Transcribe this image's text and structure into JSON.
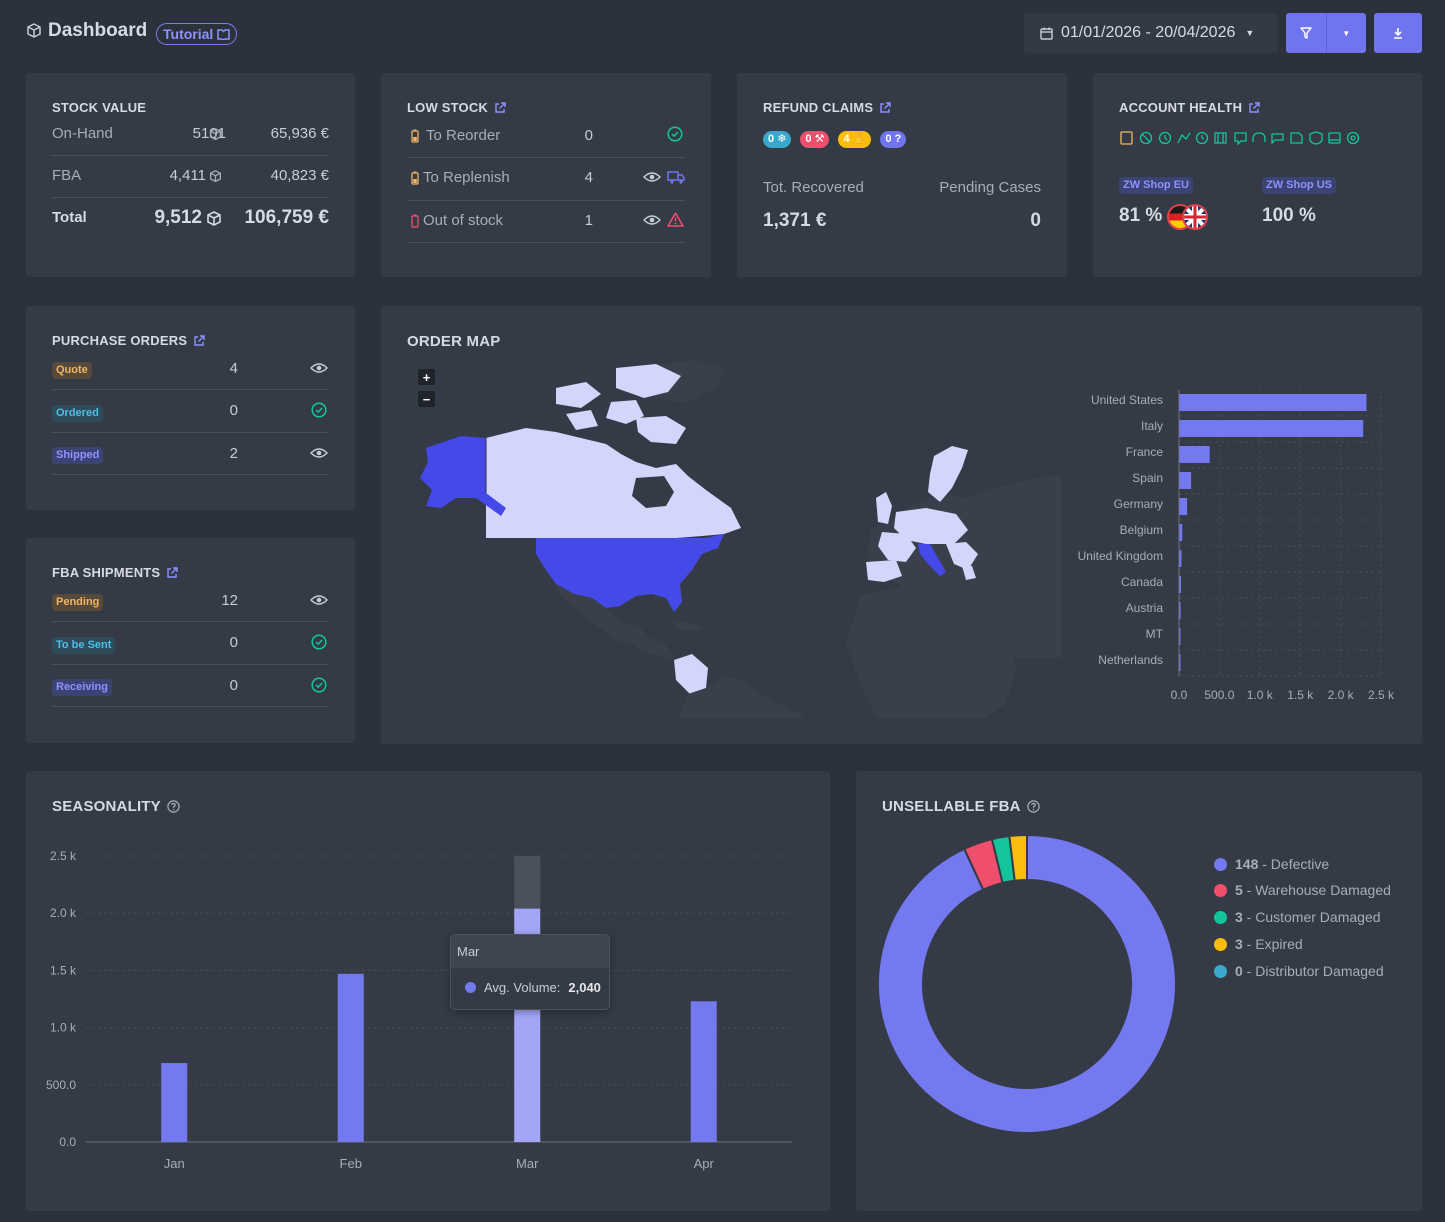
{
  "header": {
    "title": "Dashboard",
    "tutorial_label": "Tutorial",
    "date_range": "01/01/2026 - 20/04/2026"
  },
  "stock_value": {
    "title": "STOCK VALUE",
    "rows": [
      {
        "label": "On-Hand",
        "units": "5101",
        "value": "65,936 €"
      },
      {
        "label": "FBA",
        "units": "4,411",
        "value": "40,823 €"
      },
      {
        "label": "Total",
        "units": "9,512",
        "value": "106,759 €"
      }
    ]
  },
  "low_stock": {
    "title": "LOW STOCK",
    "rows": [
      {
        "label": "To Reorder",
        "count": "0"
      },
      {
        "label": "To Replenish",
        "count": "4"
      },
      {
        "label": "Out of stock",
        "count": "1"
      }
    ]
  },
  "refund_claims": {
    "title": "REFUND CLAIMS",
    "badges": [
      "0",
      "0",
      "4",
      "0"
    ],
    "recovered_label": "Tot. Recovered",
    "recovered_value": "1,371 €",
    "pending_label": "Pending Cases",
    "pending_value": "0"
  },
  "account_health": {
    "title": "ACCOUNT HEALTH",
    "shops": [
      {
        "name": "ZW Shop EU",
        "value": "81 %"
      },
      {
        "name": "ZW Shop US",
        "value": "100 %"
      }
    ]
  },
  "purchase_orders": {
    "title": "PURCHASE ORDERS",
    "rows": [
      {
        "label": "Quote",
        "count": "4"
      },
      {
        "label": "Ordered",
        "count": "0"
      },
      {
        "label": "Shipped",
        "count": "2"
      }
    ]
  },
  "fba_shipments": {
    "title": "FBA SHIPMENTS",
    "rows": [
      {
        "label": "Pending",
        "count": "12"
      },
      {
        "label": "To be Sent",
        "count": "0"
      },
      {
        "label": "Receiving",
        "count": "0"
      }
    ]
  },
  "order_map": {
    "title": "ORDER MAP",
    "zoom_in": "+",
    "zoom_out": "−"
  },
  "seasonality": {
    "title": "SEASONALITY",
    "tooltip": {
      "month": "Mar",
      "label": "Avg. Volume:",
      "value": "2,040"
    }
  },
  "unsellable": {
    "title": "UNSELLABLE FBA",
    "legend": [
      {
        "count": "148",
        "label": " - Defective"
      },
      {
        "count": "5",
        "label": " - Warehouse Damaged"
      },
      {
        "count": "3",
        "label": " - Customer Damaged"
      },
      {
        "count": "3",
        "label": " - Expired"
      },
      {
        "count": "0",
        "label": " - Distributor Damaged"
      }
    ]
  },
  "colors": {
    "accent": "#7075ef",
    "map_highlight": "#4449e8",
    "map_light": "#d3d5fb",
    "map_base": "#3a404b",
    "defective": "#7479f0",
    "warehouse_damaged": "#ef4f6d",
    "customer_damaged": "#13c59a",
    "expired": "#fbbd0d",
    "distributor_damaged": "#3aa7cd"
  },
  "chart_data": [
    {
      "type": "bar",
      "orientation": "horizontal",
      "categories": [
        "United States",
        "Italy",
        "France",
        "Spain",
        "Germany",
        "Belgium",
        "United Kingdom",
        "Canada",
        "Austria",
        "MT",
        "Netherlands"
      ],
      "values": [
        2320,
        2280,
        380,
        150,
        100,
        40,
        30,
        25,
        20,
        10,
        5
      ],
      "x_ticks": [
        "0.0",
        "500.0",
        "1.0 k",
        "1.5 k",
        "2.0 k",
        "2.5 k"
      ],
      "xlim": [
        0,
        2500
      ]
    },
    {
      "type": "bar",
      "categories": [
        "Jan",
        "Feb",
        "Mar",
        "Apr"
      ],
      "series": [
        {
          "name": "Avg. Volume",
          "values": [
            690,
            1470,
            2040,
            1230
          ]
        }
      ],
      "y_ticks": [
        "0.0",
        "500.0",
        "1.0 k",
        "1.5 k",
        "2.0 k",
        "2.5 k"
      ],
      "ylim": [
        0,
        2500
      ],
      "highlight_category": "Mar"
    },
    {
      "type": "pie",
      "donut": true,
      "labels": [
        "Defective",
        "Warehouse Damaged",
        "Customer Damaged",
        "Expired",
        "Distributor Damaged"
      ],
      "values": [
        148,
        5,
        3,
        3,
        0
      ]
    }
  ]
}
